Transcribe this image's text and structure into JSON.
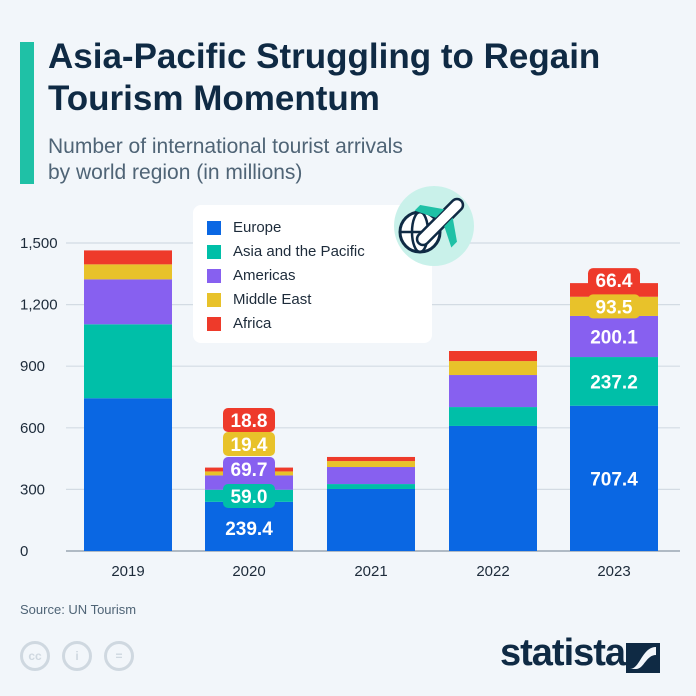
{
  "header": {
    "title": "Asia-Pacific Struggling to Regain Tourism Momentum",
    "subtitle_line1": "Number of international tourist arrivals",
    "subtitle_line2": "by world region (in millions)"
  },
  "footer": {
    "source": "Source: UN Tourism",
    "logo": "statista",
    "license_icons": [
      "cc-icon",
      "attribution-icon",
      "no-derivatives-icon"
    ]
  },
  "decoration": {
    "icon": "airplane-globe-icon"
  },
  "chart_data": {
    "type": "bar",
    "stacked": true,
    "categories": [
      "2019",
      "2020",
      "2021",
      "2022",
      "2023"
    ],
    "ylim": [
      0,
      1500
    ],
    "yticks": [
      0,
      300,
      600,
      900,
      1200,
      1500
    ],
    "ytick_labels": [
      "0",
      "300",
      "600",
      "900",
      "1,200",
      "1,500"
    ],
    "grid": true,
    "legend_position": "top-left",
    "series": [
      {
        "name": "Europe",
        "color": "#0a67e3",
        "values": [
          744,
          239.4,
          302,
          609,
          707.4
        ],
        "labels": [
          null,
          "239.4",
          null,
          null,
          "707.4"
        ]
      },
      {
        "name": "Asia and the Pacific",
        "color": "#00bfa8",
        "values": [
          360,
          59.0,
          24,
          92,
          237.2
        ],
        "labels": [
          null,
          "59.0",
          null,
          null,
          "237.2"
        ]
      },
      {
        "name": "Americas",
        "color": "#8760f0",
        "values": [
          219,
          69.7,
          83,
          156,
          200.1
        ],
        "labels": [
          null,
          "69.7",
          null,
          null,
          "200.1"
        ]
      },
      {
        "name": "Middle East",
        "color": "#e8c22a",
        "values": [
          73,
          19.4,
          29,
          68,
          93.5
        ],
        "labels": [
          null,
          "19.4",
          null,
          null,
          "93.5"
        ]
      },
      {
        "name": "Africa",
        "color": "#ee3a2a",
        "values": [
          68,
          18.8,
          20,
          49,
          66.4
        ],
        "labels": [
          null,
          "18.8",
          null,
          null,
          "66.4"
        ]
      }
    ]
  }
}
